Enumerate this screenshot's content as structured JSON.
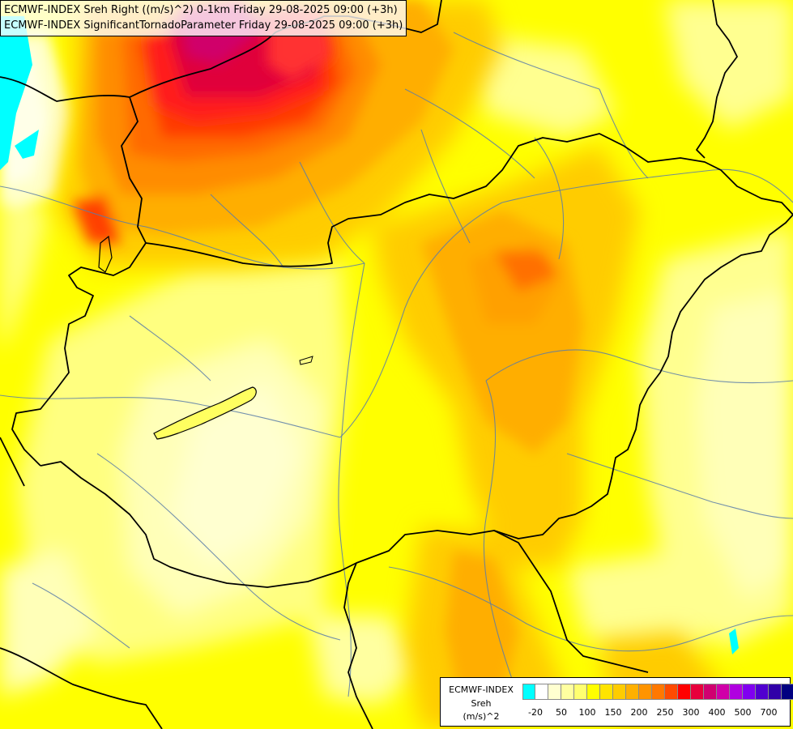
{
  "header": {
    "line1": "ECMWF-INDEX Sreh Right ((m/s)^2) 0-1km Friday 29-08-2025 09:00 (+3h)",
    "line2": "ECMWF-INDEX SignificantTornadoParameter Friday 29-08-2025 09:00 (+3h)"
  },
  "legend": {
    "line1": "ECMWF-INDEX",
    "line2": "Sreh",
    "line3": "(m/s)^2",
    "colors": [
      "#00ffff",
      "#ffffff",
      "#ffffd0",
      "#ffffa0",
      "#ffff70",
      "#ffff00",
      "#ffe400",
      "#ffcc00",
      "#ffb000",
      "#ff9400",
      "#ff7800",
      "#ff4a00",
      "#ff0000",
      "#e8003c",
      "#d00070",
      "#d000a8",
      "#b000e0",
      "#8000f0",
      "#5000d0",
      "#3000a8",
      "#000080"
    ],
    "ticks": [
      {
        "label": "-20",
        "at": 1
      },
      {
        "label": "50",
        "at": 3
      },
      {
        "label": "100",
        "at": 5
      },
      {
        "label": "150",
        "at": 7
      },
      {
        "label": "200",
        "at": 9
      },
      {
        "label": "250",
        "at": 11
      },
      {
        "label": "300",
        "at": 13
      },
      {
        "label": "400",
        "at": 15
      },
      {
        "label": "500",
        "at": 17
      },
      {
        "label": "700",
        "at": 19
      }
    ]
  }
}
